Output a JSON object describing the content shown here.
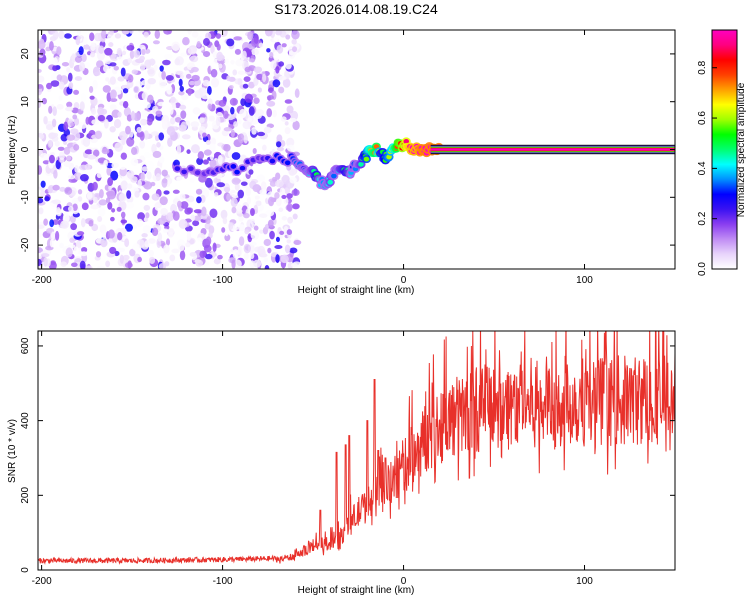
{
  "title": "S173.2026.014.08.19.C24",
  "chart_data": [
    {
      "type": "heatmap",
      "xlabel": "Height of straight line (km)",
      "ylabel": "Frequency (Hz)",
      "xlim": [
        -202,
        150
      ],
      "ylim": [
        -25,
        25
      ],
      "xticks": [
        -200,
        -100,
        0,
        100
      ],
      "yticks": [
        -20,
        -10,
        0,
        10,
        20
      ],
      "noise_region_x": [
        -202,
        -62
      ],
      "track": {
        "x": [
          -125,
          -110,
          -100,
          -92,
          -80,
          -70,
          -62,
          -58,
          -55,
          -52,
          -50,
          -48,
          -45,
          -42,
          -40,
          -38,
          -35,
          -32,
          -30,
          -28,
          -25,
          -22,
          -20,
          -18,
          -15,
          -12,
          -10,
          -8,
          -5,
          -3,
          0,
          2,
          5,
          8,
          10,
          12,
          15,
          18,
          20
        ],
        "y": [
          -4,
          -5,
          -4,
          -4,
          -2,
          -2,
          -2,
          -3,
          -4,
          -5,
          -5,
          -6,
          -7,
          -7,
          -6,
          -5,
          -4,
          -5,
          -5,
          -4,
          -3,
          -2,
          -1,
          0,
          0,
          -1,
          -2,
          -1,
          0,
          1,
          1,
          1,
          0,
          0,
          0,
          0,
          0,
          0,
          0
        ],
        "amplitude": [
          0.25,
          0.2,
          0.25,
          0.3,
          0.2,
          0.3,
          0.3,
          0.35,
          0.3,
          0.4,
          0.45,
          0.5,
          0.35,
          0.4,
          0.45,
          0.3,
          0.45,
          0.5,
          0.45,
          0.3,
          0.4,
          0.5,
          0.6,
          0.7,
          0.75,
          0.5,
          0.55,
          0.6,
          0.7,
          0.8,
          0.85,
          0.9,
          0.95,
          0.95,
          0.98,
          0.98,
          0.98,
          0.98,
          0.98
        ]
      },
      "steady_line": {
        "x": [
          15,
          150
        ],
        "y": 0,
        "amplitude": 0.98
      },
      "colorbar": {
        "label": "Normalized spectral amplitude",
        "range": [
          0,
          0.95
        ],
        "ticks": [
          "0.0",
          "0.2",
          "0.4",
          "0.6",
          "0.8"
        ],
        "tick_values": [
          0.0,
          0.2,
          0.4,
          0.6,
          0.8
        ],
        "colors": [
          "#ffffff",
          "#e8d4fb",
          "#c08cf4",
          "#8a3ef0",
          "#3a12f2",
          "#0000ff",
          "#0090ff",
          "#00ffff",
          "#00ff70",
          "#00ff00",
          "#a0ff00",
          "#ffff00",
          "#ffa000",
          "#ff4000",
          "#ff0000",
          "#ff0080",
          "#ff00c0"
        ]
      }
    },
    {
      "type": "line",
      "xlabel": "Height of straight line (km)",
      "ylabel": "SNR (10 * v/v)",
      "xlim": [
        -202,
        150
      ],
      "ylim": [
        0,
        640
      ],
      "xticks": [
        -200,
        -100,
        0,
        100
      ],
      "yticks": [
        0,
        200,
        400,
        600
      ],
      "color": "#e8302a",
      "trend": {
        "x": [
          -202,
          -150,
          -100,
          -70,
          -60,
          -50,
          -40,
          -35,
          -30,
          -25,
          -20,
          -15,
          -10,
          -5,
          0,
          5,
          10,
          15,
          20,
          30,
          40,
          50,
          60,
          80,
          100,
          120,
          140,
          150
        ],
        "y": [
          22,
          22,
          25,
          28,
          35,
          65,
          70,
          85,
          120,
          150,
          170,
          190,
          210,
          235,
          270,
          300,
          330,
          360,
          380,
          400,
          420,
          430,
          430,
          440,
          440,
          440,
          445,
          450
        ]
      },
      "spikes": {
        "x": [
          -46,
          -37,
          -32,
          -30,
          -20,
          -16,
          -14,
          -10
        ],
        "y": [
          160,
          315,
          335,
          360,
          400,
          510,
          320,
          300
        ]
      }
    }
  ]
}
